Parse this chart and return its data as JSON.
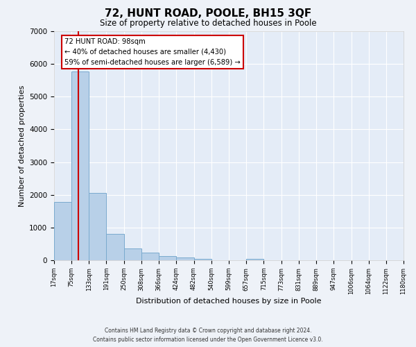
{
  "title": "72, HUNT ROAD, POOLE, BH15 3QF",
  "subtitle": "Size of property relative to detached houses in Poole",
  "xlabel": "Distribution of detached houses by size in Poole",
  "ylabel": "Number of detached properties",
  "bar_color": "#b8d0e8",
  "bar_edge_color": "#7aaace",
  "vline_x": 98,
  "vline_color": "#cc0000",
  "annotation_title": "72 HUNT ROAD: 98sqm",
  "annotation_line1": "← 40% of detached houses are smaller (4,430)",
  "annotation_line2": "59% of semi-detached houses are larger (6,589) →",
  "annotation_box_color": "#ffffff",
  "annotation_box_edge_color": "#cc0000",
  "bin_edges": [
    17,
    75,
    133,
    191,
    250,
    308,
    366,
    424,
    482,
    540,
    599,
    657,
    715,
    773,
    831,
    889,
    947,
    1006,
    1064,
    1122,
    1180
  ],
  "bin_counts": [
    1780,
    5780,
    2060,
    810,
    370,
    230,
    120,
    80,
    50,
    0,
    0,
    50,
    0,
    0,
    0,
    0,
    0,
    0,
    0,
    0
  ],
  "ylim": [
    0,
    7000
  ],
  "xlim": [
    17,
    1180
  ],
  "tick_labels": [
    "17sqm",
    "75sqm",
    "133sqm",
    "191sqm",
    "250sqm",
    "308sqm",
    "366sqm",
    "424sqm",
    "482sqm",
    "540sqm",
    "599sqm",
    "657sqm",
    "715sqm",
    "773sqm",
    "831sqm",
    "889sqm",
    "947sqm",
    "1006sqm",
    "1064sqm",
    "1122sqm",
    "1180sqm"
  ],
  "footer1": "Contains HM Land Registry data © Crown copyright and database right 2024.",
  "footer2": "Contains public sector information licensed under the Open Government Licence v3.0.",
  "bg_color": "#eef2f8",
  "plot_bg_color": "#e4ecf7"
}
